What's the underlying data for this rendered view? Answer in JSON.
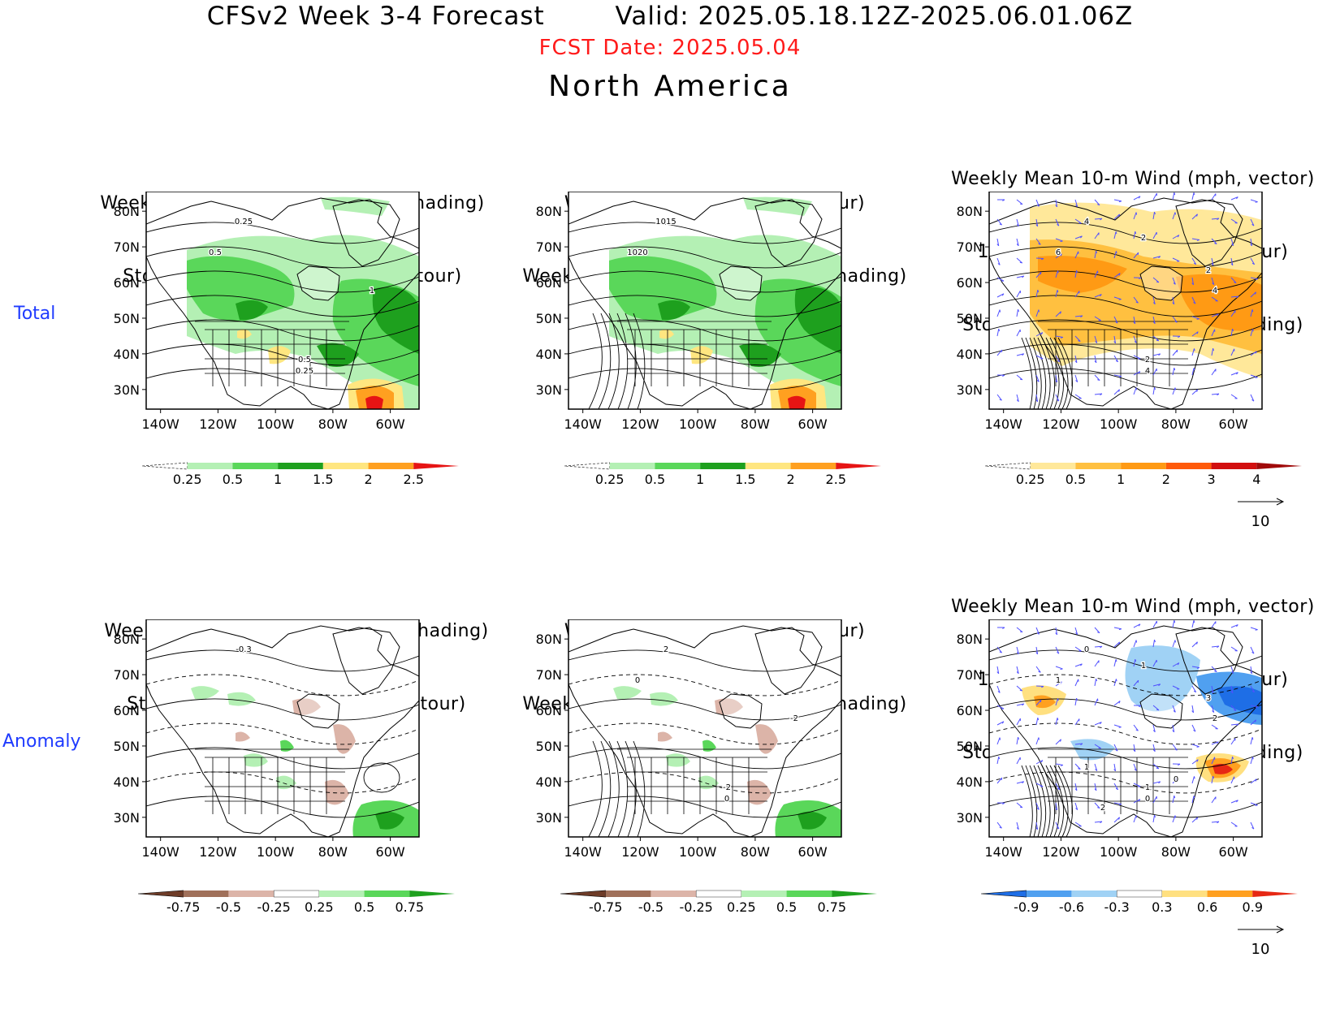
{
  "header": {
    "title": "CFSv2 Week 3-4 Forecast        Valid: 2025.05.18.12Z-2025.06.01.06Z",
    "fcst_date": "FCST Date: 2025.05.04",
    "region": "North America"
  },
  "row_labels": [
    "Total",
    "Anomaly"
  ],
  "axes": {
    "lat_ticks": [
      "80N",
      "70N",
      "60N",
      "50N",
      "40N",
      "30N"
    ],
    "lon_ticks": [
      "140W",
      "120W",
      "100W",
      "80W",
      "60W"
    ]
  },
  "panels": [
    {
      "id": "total-precip",
      "title_lines": [
        "Weekly Total Precip/7-day (inch, shading)",
        "Storm Track Density/7-day (contour)"
      ],
      "scheme": "precip",
      "contour_labels": [
        "0.25",
        "0.5",
        "1",
        "0.5",
        "0.25"
      ]
    },
    {
      "id": "total-slp",
      "title_lines": [
        "Weekly Mean SLP (hPa, contour)",
        "Weekly Total Precip/7-day (inch, shading)"
      ],
      "scheme": "precip",
      "contour_labels": [
        "1015",
        "1020"
      ]
    },
    {
      "id": "total-wind",
      "title_lines": [
        "Weekly Mean 10-m Wind (mph, vector)",
        "10-m Wind Speed (mph, contour)",
        "Storm Track Density/7-day (shading)"
      ],
      "scheme": "storm",
      "contour_labels": [
        "4",
        "6",
        "4",
        "2",
        "4",
        "2",
        "2"
      ]
    },
    {
      "id": "anom-precip",
      "title_lines": [
        "Weekly Total Precip/7-day (inch, shading)",
        "Storm Track Density/7-day (contour)"
      ],
      "scheme": "anom",
      "contour_labels": [
        "-0.3"
      ]
    },
    {
      "id": "anom-slp",
      "title_lines": [
        "Weekly Mean SLP (hPa, contour)",
        "Weekly Total Precip/7-day (inch, shading)"
      ],
      "scheme": "anom",
      "contour_labels": [
        "2",
        "0",
        "-2",
        "-2",
        "0"
      ]
    },
    {
      "id": "anom-wind",
      "title_lines": [
        "Weekly Mean 10-m Wind (mph, vector)",
        "10-m Wind Speed (mph, contour)",
        "Storm Track Density/7-day (shading)"
      ],
      "scheme": "stormanom",
      "contour_labels": [
        "0",
        "1",
        "2",
        "1",
        "0",
        "3",
        "1",
        "1",
        "0",
        "2"
      ]
    }
  ],
  "colorbars": {
    "precip": {
      "labels": [
        "0.25",
        "0.5",
        "1",
        "1.5",
        "2",
        "2.5"
      ],
      "colors": [
        "#ffffff",
        "#b4f0b4",
        "#5ad75a",
        "#1ea01e",
        "#ffe680",
        "#ffa020",
        "#e61414"
      ]
    },
    "storm": {
      "labels": [
        "0.25",
        "0.5",
        "1",
        "2",
        "3",
        "4"
      ],
      "colors": [
        "#ffffff",
        "#ffe89a",
        "#ffc040",
        "#ff9a14",
        "#ff5a0a",
        "#d20f0f",
        "#a00a0a"
      ]
    },
    "anom": {
      "labels": [
        "-0.75",
        "-0.5",
        "-0.25",
        "0.25",
        "0.5",
        "0.75"
      ],
      "colors": [
        "#6e3c28",
        "#a0705a",
        "#dcb4a8",
        "#ffffff",
        "#b4f0b4",
        "#5ad75a",
        "#1ea01e"
      ]
    },
    "stormanom": {
      "labels": [
        "-0.9",
        "-0.6",
        "-0.3",
        "0.3",
        "0.6",
        "0.9"
      ],
      "colors": [
        "#1e6ee6",
        "#50a0f0",
        "#a0d2f5",
        "#ffffff",
        "#ffe080",
        "#ffa020",
        "#e62814"
      ]
    }
  },
  "vector_ref": "10",
  "colors": {
    "land_line": "#000000",
    "vector": "#5050ff",
    "title_red": "#ff1a1a",
    "row_label": "#1f3bff"
  }
}
